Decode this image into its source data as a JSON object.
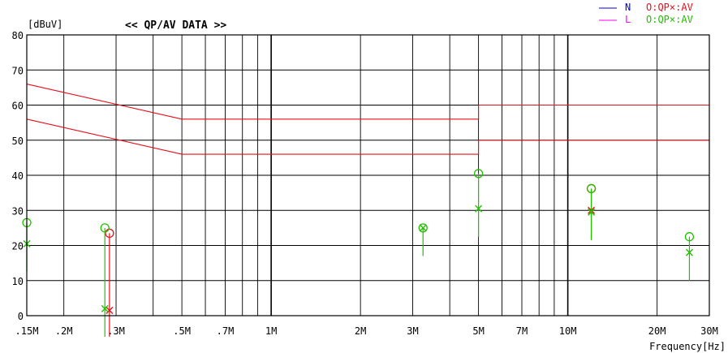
{
  "chart_data": {
    "type": "scatter",
    "title": "<< QP/AV DATA >>",
    "ylabel": "[dBuV]",
    "xlabel": "Frequency[Hz]",
    "x_scale": "log",
    "xlim_hz": [
      150000,
      30000000
    ],
    "ylim": [
      0,
      80
    ],
    "grid": true,
    "y_ticks": [
      0,
      10,
      20,
      30,
      40,
      50,
      60,
      70,
      80
    ],
    "x_ticks": [
      {
        "hz": 150000,
        "label": ".15M"
      },
      {
        "hz": 200000,
        "label": ".2M"
      },
      {
        "hz": 300000,
        "label": ".3M"
      },
      {
        "hz": 500000,
        "label": ".5M"
      },
      {
        "hz": 700000,
        "label": ".7M"
      },
      {
        "hz": 1000000,
        "label": "1M"
      },
      {
        "hz": 2000000,
        "label": "2M"
      },
      {
        "hz": 3000000,
        "label": "3M"
      },
      {
        "hz": 5000000,
        "label": "5M"
      },
      {
        "hz": 7000000,
        "label": "7M"
      },
      {
        "hz": 10000000,
        "label": "10M"
      },
      {
        "hz": 20000000,
        "label": "20M"
      },
      {
        "hz": 30000000,
        "label": "30M"
      }
    ],
    "minor_x_gridlines_hz": [
      400000,
      600000,
      800000,
      900000,
      4000000,
      6000000,
      8000000,
      9000000
    ],
    "limit_lines": [
      {
        "segments": [
          [
            [
              150000,
              66
            ],
            [
              500000,
              56
            ]
          ],
          [
            [
              500000,
              56
            ],
            [
              5000000,
              56
            ]
          ],
          [
            [
              5000000,
              60
            ],
            [
              30000000,
              60
            ]
          ]
        ],
        "color": "#e8101a"
      },
      {
        "segments": [
          [
            [
              150000,
              56
            ],
            [
              500000,
              46
            ]
          ],
          [
            [
              500000,
              46
            ],
            [
              5000000,
              46
            ]
          ],
          [
            [
              5000000,
              50
            ],
            [
              30000000,
              50
            ]
          ]
        ],
        "color": "#e8101a"
      }
    ],
    "legend": {
      "placement": "top-right",
      "entries": [
        {
          "label": "N",
          "color": "#0000e0",
          "marker_text": "O:QP×:AV",
          "marker_color": "#e8101a"
        },
        {
          "label": "L",
          "color": "#ff00ff",
          "marker_text": "O:QP×:AV",
          "marker_color": "#22c000"
        }
      ]
    },
    "series": [
      {
        "name": "N",
        "qp_color": "#e8101a",
        "av_color": "#e8101a",
        "points": [
          {
            "hz": 285000,
            "qp": 23.5,
            "av": 1.5
          },
          {
            "hz": 12000000,
            "qp": 36.2,
            "av": 30.0
          }
        ]
      },
      {
        "name": "L",
        "qp_color": "#22c000",
        "av_color": "#22c000",
        "points": [
          {
            "hz": 150000,
            "qp": 26.5,
            "av": 20.5
          },
          {
            "hz": 275000,
            "qp": 25.0,
            "av": 2.0
          },
          {
            "hz": 3250000,
            "qp": 25.0,
            "av": 25.0
          },
          {
            "hz": 5000000,
            "qp": 40.5,
            "av": 30.5
          },
          {
            "hz": 12000000,
            "qp": 36.2,
            "av": 29.5
          },
          {
            "hz": 25700000,
            "qp": 22.5,
            "av": 18.0
          }
        ]
      }
    ]
  }
}
